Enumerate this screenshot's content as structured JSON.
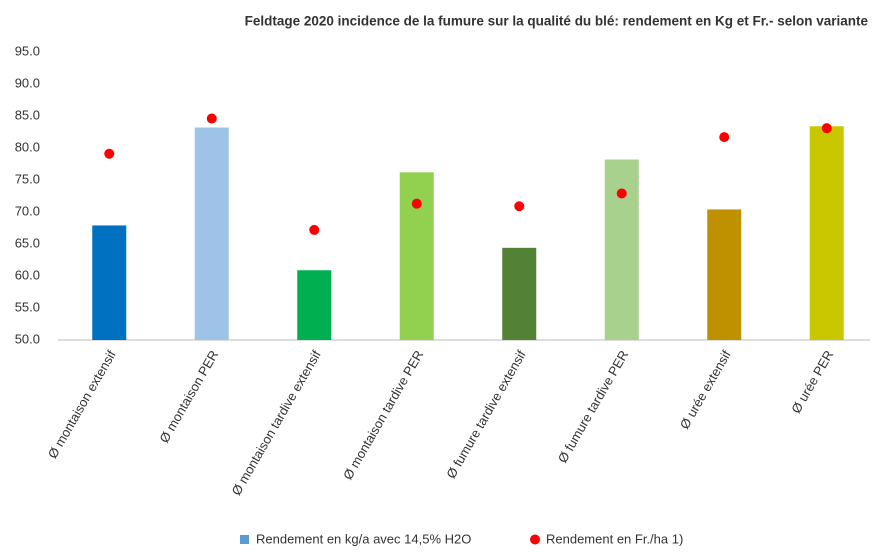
{
  "chart_data": {
    "type": "bar",
    "title": "Feldtage 2020 incidence de la fumure sur la qualité du blé: rendement en Kg et Fr.- selon variante",
    "categories": [
      "Ø montaison extensif",
      "Ø montaison PER",
      "Ø montaison tardive extensif",
      "Ø montaison tardive PER",
      "Ø fumure tardive extensif",
      "Ø fumure tardive PER",
      "Ø urée  extensif",
      "Ø urée PER"
    ],
    "series": [
      {
        "name": "Rendement en kg/a avec 14,5% H2O",
        "type": "bar",
        "color": "#5b9bd5",
        "colors": [
          "#0070c0",
          "#9dc3e6",
          "#00b050",
          "#92d050",
          "#548235",
          "#a9d18e",
          "#bf9000",
          "#c9c800"
        ],
        "values": [
          67.9,
          83.2,
          60.9,
          76.2,
          64.4,
          78.2,
          70.4,
          83.4
        ]
      },
      {
        "name": "Rendement en Fr./ha 1)",
        "type": "scatter",
        "color": "#ff0000",
        "values": [
          79.1,
          84.6,
          67.2,
          71.3,
          70.9,
          72.9,
          81.7,
          83.1
        ]
      }
    ],
    "ylim": [
      50,
      95
    ],
    "yticks": [
      {
        "value": 50,
        "label": "50.0"
      },
      {
        "value": 55,
        "label": "55.0"
      },
      {
        "value": 60,
        "label": "60.0"
      },
      {
        "value": 65,
        "label": "65.0"
      },
      {
        "value": 70,
        "label": "70.0"
      },
      {
        "value": 75,
        "label": "75.0"
      },
      {
        "value": 80,
        "label": "80.0"
      },
      {
        "value": 85,
        "label": "85.0"
      },
      {
        "value": 90,
        "label": "90.0"
      },
      {
        "value": 95,
        "label": "95.0"
      }
    ],
    "grid": false
  }
}
